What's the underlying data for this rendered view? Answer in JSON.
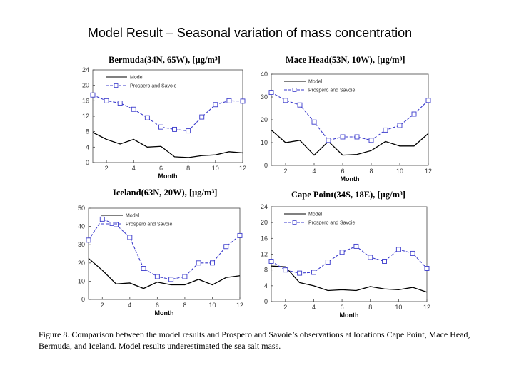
{
  "title": "Model Result – Seasonal variation of mass concentration",
  "caption": "Figure 8. Comparison between the model results and Prospero and Savoie’s observations at locations Cape Point, Mace Head, Bermuda, and Iceland. Model results underestimated the sea salt mass.",
  "colors": {
    "model": "#000000",
    "obs": "#3a3acc"
  },
  "chart_data": [
    {
      "id": "bermuda",
      "type": "line",
      "title": "Bermuda(34N, 65W), [µg/m³]",
      "xlabel": "Month",
      "ylabel": "",
      "xlim": [
        1,
        12
      ],
      "ylim": [
        0,
        24
      ],
      "xticks": [
        2,
        4,
        6,
        8,
        10,
        12
      ],
      "yticks": [
        0,
        4,
        8,
        12,
        16,
        20,
        24
      ],
      "x": [
        1,
        2,
        3,
        4,
        5,
        6,
        7,
        8,
        9,
        10,
        11,
        12
      ],
      "series": [
        {
          "name": "Model",
          "values": [
            7.8,
            6.0,
            4.8,
            6.0,
            4.0,
            4.2,
            1.5,
            1.3,
            1.8,
            2.0,
            2.8,
            2.5
          ]
        },
        {
          "name": "Prospero and Savoie",
          "values": [
            17.5,
            16.0,
            15.4,
            13.8,
            11.6,
            9.2,
            8.6,
            8.2,
            11.8,
            15.0,
            16.0,
            15.9
          ]
        }
      ]
    },
    {
      "id": "macehead",
      "type": "line",
      "title": "Mace Head(53N, 10W), [µg/m³]",
      "xlabel": "Month",
      "ylabel": "",
      "xlim": [
        1,
        12
      ],
      "ylim": [
        0,
        40
      ],
      "xticks": [
        2,
        4,
        6,
        8,
        10,
        12
      ],
      "yticks": [
        0,
        10,
        20,
        30,
        40
      ],
      "x": [
        1,
        2,
        3,
        4,
        5,
        6,
        7,
        8,
        9,
        10,
        11,
        12
      ],
      "series": [
        {
          "name": "Model",
          "values": [
            15.5,
            10.0,
            11.0,
            4.5,
            10.5,
            4.5,
            4.8,
            6.5,
            10.5,
            8.5,
            8.5,
            14.0
          ]
        },
        {
          "name": "Prospero and Savoie",
          "values": [
            32.0,
            28.5,
            26.5,
            19.0,
            11.0,
            12.5,
            12.5,
            11.0,
            15.5,
            17.5,
            22.5,
            28.5
          ]
        }
      ]
    },
    {
      "id": "iceland",
      "type": "line",
      "title": "Iceland(63N, 20W), [µg/m³]",
      "xlabel": "Month",
      "ylabel": "",
      "xlim": [
        1,
        12
      ],
      "ylim": [
        0,
        50
      ],
      "xticks": [
        2,
        4,
        6,
        8,
        10,
        12
      ],
      "yticks": [
        0,
        10,
        20,
        30,
        40,
        50
      ],
      "x": [
        1,
        2,
        3,
        4,
        5,
        6,
        7,
        8,
        9,
        10,
        11,
        12
      ],
      "series": [
        {
          "name": "Model",
          "values": [
            22.5,
            16.0,
            8.5,
            9.0,
            6.0,
            9.5,
            8.0,
            8.0,
            11.0,
            8.0,
            12.0,
            13.0
          ]
        },
        {
          "name": "Prospero and Savoie",
          "values": [
            32.5,
            44.0,
            41.0,
            34.0,
            17.0,
            12.5,
            11.0,
            12.5,
            20.0,
            20.0,
            29.0,
            35.0
          ]
        }
      ]
    },
    {
      "id": "capepoint",
      "type": "line",
      "title": "Cape Point(34S, 18E), [µg/m³]",
      "xlabel": "Month",
      "ylabel": "",
      "xlim": [
        1,
        12
      ],
      "ylim": [
        0,
        24
      ],
      "xticks": [
        2,
        4,
        6,
        8,
        10,
        12
      ],
      "yticks": [
        0,
        4,
        8,
        12,
        16,
        20,
        24
      ],
      "x": [
        1,
        2,
        3,
        4,
        5,
        6,
        7,
        8,
        9,
        10,
        11,
        12
      ],
      "series": [
        {
          "name": "Model",
          "values": [
            9.0,
            8.8,
            4.8,
            4.0,
            2.8,
            3.0,
            2.8,
            3.8,
            3.2,
            3.0,
            3.6,
            2.4
          ]
        },
        {
          "name": "Prospero and Savoie",
          "values": [
            10.2,
            8.0,
            7.2,
            7.4,
            10.0,
            12.5,
            14.0,
            11.2,
            10.2,
            13.2,
            12.2,
            8.4
          ]
        }
      ]
    }
  ]
}
